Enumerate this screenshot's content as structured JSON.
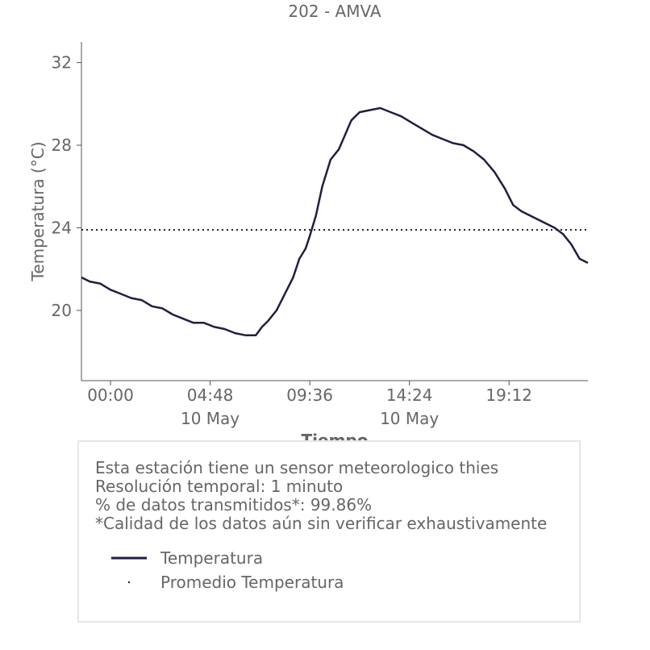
{
  "chart_data": {
    "type": "line",
    "title": "202 - AMVA",
    "xlabel": "Tiempo",
    "ylabel": "Temperatura (°C)",
    "xlim": [
      -1.4,
      23.0
    ],
    "ylim": [
      16.6,
      33.0
    ],
    "x_ticks": [
      {
        "hours": 0.0,
        "label": "00:00",
        "sublabel": ""
      },
      {
        "hours": 4.8,
        "label": "04:48",
        "sublabel": "10 May"
      },
      {
        "hours": 9.6,
        "label": "09:36",
        "sublabel": ""
      },
      {
        "hours": 14.4,
        "label": "14:24",
        "sublabel": "10 May"
      },
      {
        "hours": 19.2,
        "label": "19:12",
        "sublabel": ""
      }
    ],
    "y_ticks": [
      20,
      24,
      28,
      32
    ],
    "grid": false,
    "series": [
      {
        "name": "Temperatura",
        "color": "#1f1f45",
        "style": "solid",
        "x": [
          -1.4,
          -1.0,
          -0.5,
          0.0,
          0.5,
          1.0,
          1.5,
          2.0,
          2.5,
          3.0,
          3.5,
          4.0,
          4.5,
          5.0,
          5.5,
          6.0,
          6.5,
          7.0,
          7.3,
          7.6,
          8.0,
          8.4,
          8.8,
          9.1,
          9.4,
          9.6,
          9.9,
          10.2,
          10.6,
          11.0,
          11.3,
          11.6,
          12.0,
          12.5,
          13.0,
          13.5,
          14.0,
          14.5,
          15.0,
          15.5,
          16.0,
          16.5,
          17.0,
          17.5,
          18.0,
          18.5,
          19.0,
          19.4,
          19.8,
          20.2,
          20.6,
          21.0,
          21.4,
          21.8,
          22.2,
          22.6,
          23.0
        ],
        "y": [
          21.6,
          21.4,
          21.3,
          21.0,
          20.8,
          20.6,
          20.5,
          20.2,
          20.1,
          19.8,
          19.6,
          19.4,
          19.4,
          19.2,
          19.1,
          18.9,
          18.8,
          18.8,
          19.2,
          19.5,
          20.0,
          20.8,
          21.6,
          22.5,
          23.0,
          23.6,
          24.6,
          26.0,
          27.3,
          27.8,
          28.5,
          29.2,
          29.6,
          29.7,
          29.8,
          29.6,
          29.4,
          29.1,
          28.8,
          28.5,
          28.3,
          28.1,
          28.0,
          27.7,
          27.3,
          26.7,
          25.9,
          25.1,
          24.8,
          24.6,
          24.4,
          24.2,
          24.0,
          23.7,
          23.2,
          22.5,
          22.3
        ]
      },
      {
        "name": "Promedio Temperatura",
        "color": "#1f1f45",
        "style": "dotted",
        "x": [
          -1.4,
          23.0
        ],
        "y": [
          23.9,
          23.9
        ]
      }
    ],
    "legend_position": "bottom"
  },
  "info": {
    "line1": "Esta estación tiene un sensor meteorologico thies",
    "line2": "Resolución temporal: 1 minuto",
    "line3": "% de datos transmitidos*: 99.86%",
    "line4": "*Calidad de los datos aún sin verificar exhaustivamente"
  }
}
